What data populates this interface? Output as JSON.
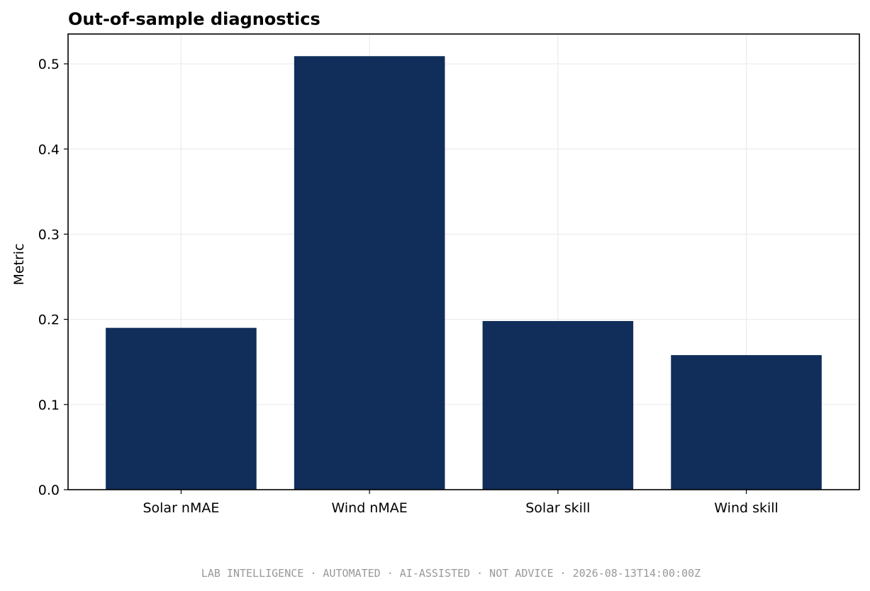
{
  "chart_data": {
    "type": "bar",
    "title": "Out-of-sample diagnostics",
    "xlabel": "",
    "ylabel": "Metric",
    "categories": [
      "Solar nMAE",
      "Wind nMAE",
      "Solar skill",
      "Wind skill"
    ],
    "values": [
      0.19,
      0.509,
      0.198,
      0.158
    ],
    "ylim": [
      0,
      0.535
    ],
    "yticks": [
      0.0,
      0.1,
      0.2,
      0.3,
      0.4,
      0.5
    ],
    "ytick_labels": [
      "0.0",
      "0.1",
      "0.2",
      "0.3",
      "0.4",
      "0.5"
    ],
    "grid": true,
    "legend": "none",
    "colors": {
      "bar": "#112e5a",
      "grid": "#ebebeb",
      "footer": "#999999"
    }
  },
  "footer": {
    "text": "LAB INTELLIGENCE · AUTOMATED · AI-ASSISTED · NOT ADVICE · 2026-08-13T14:00:00Z"
  }
}
